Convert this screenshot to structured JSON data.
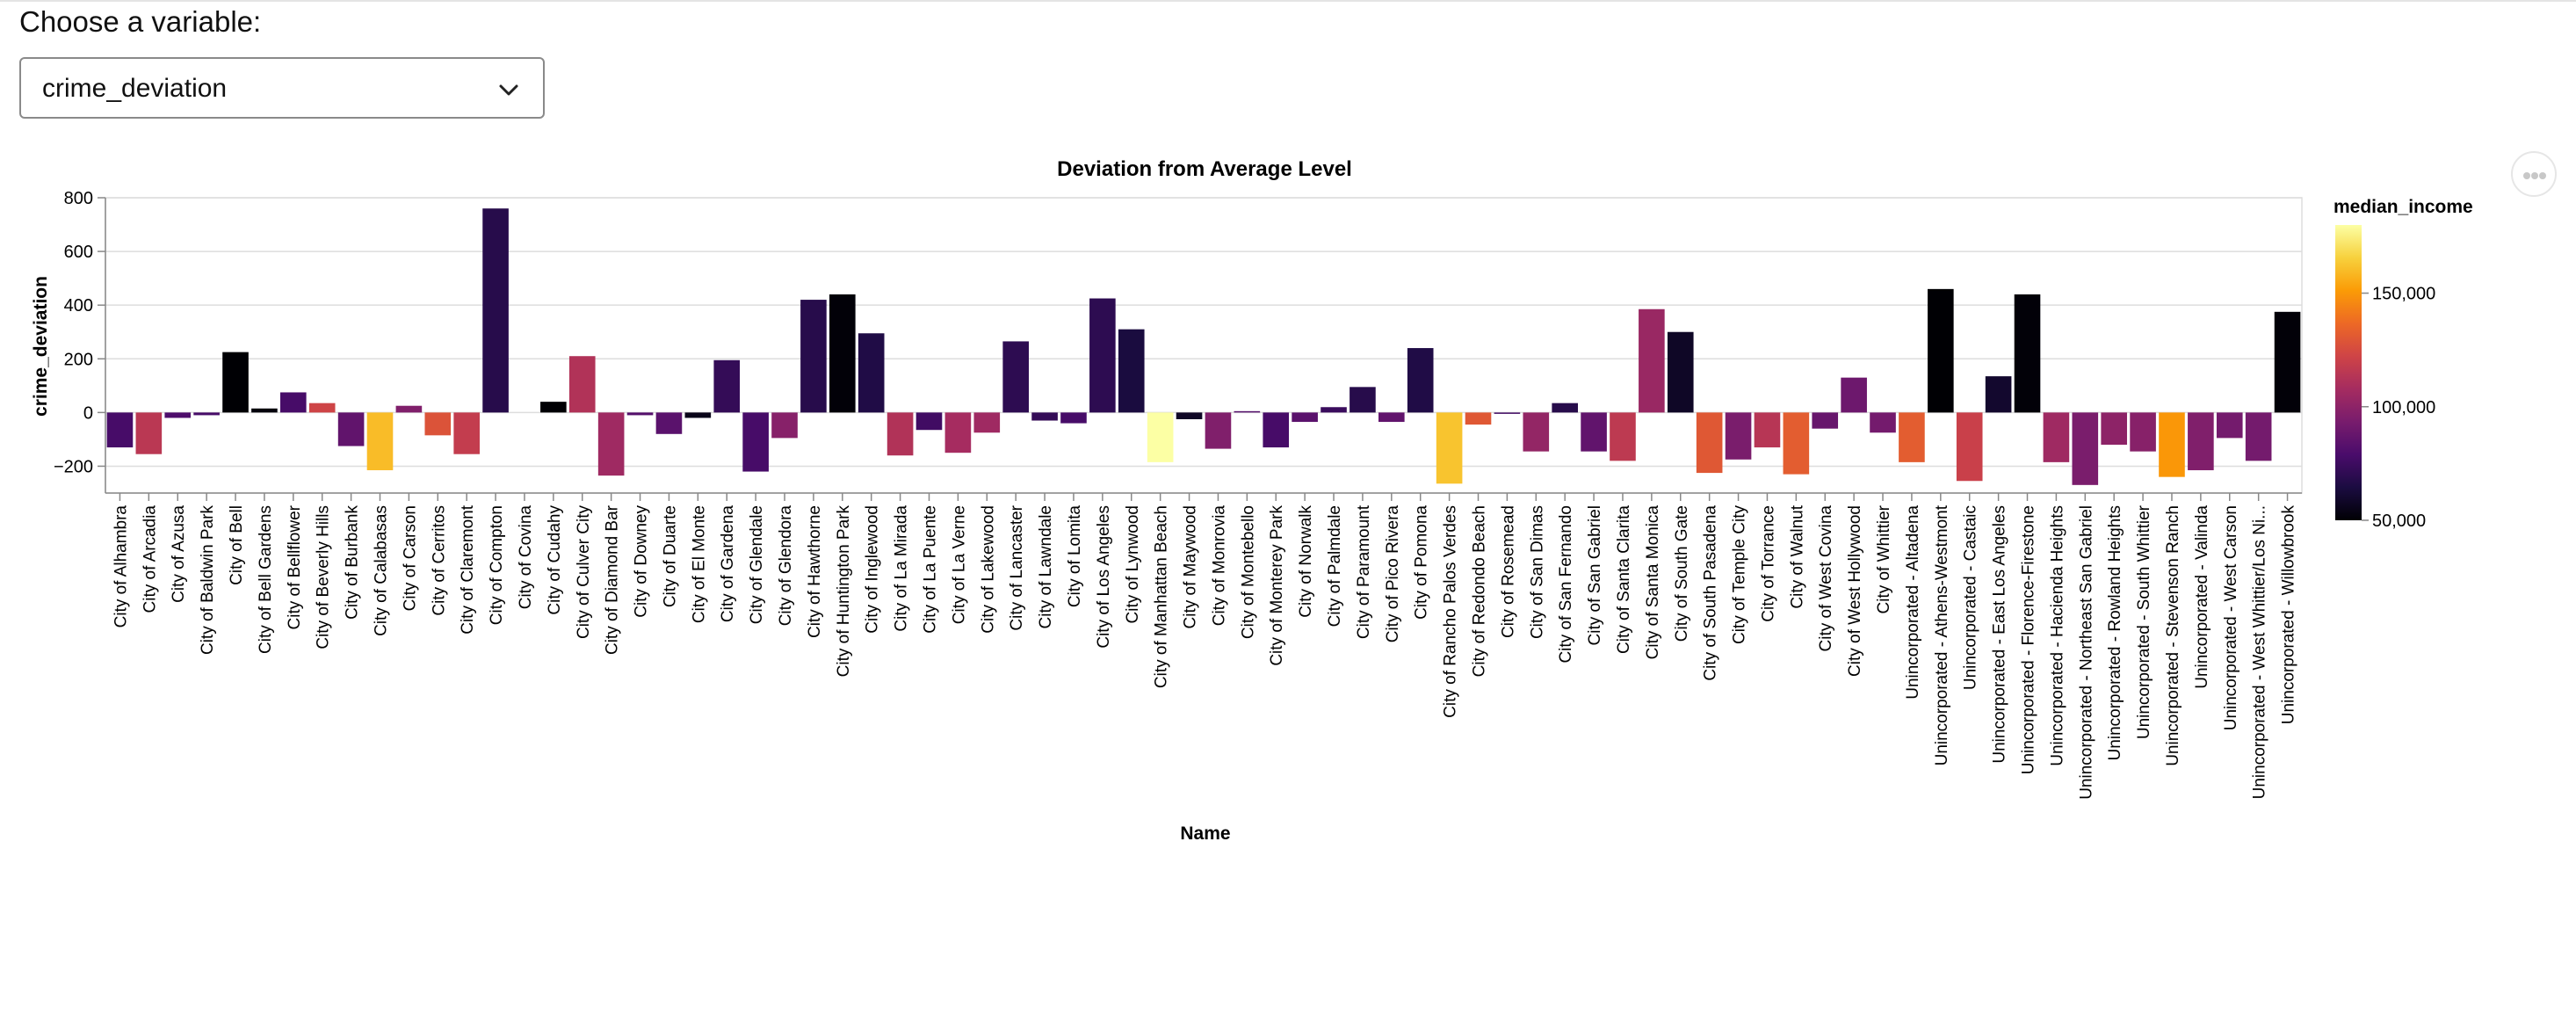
{
  "control": {
    "label": "Choose a variable:",
    "selected": "crime_deviation",
    "icon": "chevron-down-icon"
  },
  "menu": {
    "icon": "more-horizontal-icon"
  },
  "chart_data": {
    "type": "bar",
    "title": "Deviation from Average Level",
    "xlabel": "Name",
    "ylabel": "crime_deviation",
    "ylim": [
      -300,
      800
    ],
    "yticks": [
      800,
      600,
      400,
      200,
      0,
      -200
    ],
    "ytick_labels": [
      "800",
      "600",
      "400",
      "200",
      "0",
      "−200"
    ],
    "grid": true,
    "color_legend": {
      "title": "median_income",
      "min": 50000,
      "max": 180000,
      "ticks": [
        150000,
        100000,
        50000
      ],
      "tick_labels": [
        "150,000",
        "100,000",
        "50,000"
      ],
      "scheme": "inferno",
      "placement": "right"
    },
    "categories": [
      "City of Alhambra",
      "City of Arcadia",
      "City of Azusa",
      "City of Baldwin Park",
      "City of Bell",
      "City of Bell Gardens",
      "City of Bellflower",
      "City of Beverly Hills",
      "City of Burbank",
      "City of Calabasas",
      "City of Carson",
      "City of Cerritos",
      "City of Claremont",
      "City of Compton",
      "City of Covina",
      "City of Cudahy",
      "City of Culver City",
      "City of Diamond Bar",
      "City of Downey",
      "City of Duarte",
      "City of El Monte",
      "City of Gardena",
      "City of Glendale",
      "City of Glendora",
      "City of Hawthorne",
      "City of Huntington Park",
      "City of Inglewood",
      "City of La Mirada",
      "City of La Puente",
      "City of La Verne",
      "City of Lakewood",
      "City of Lancaster",
      "City of Lawndale",
      "City of Lomita",
      "City of Los Angeles",
      "City of Lynwood",
      "City of Manhattan Beach",
      "City of Maywood",
      "City of Monrovia",
      "City of Montebello",
      "City of Monterey Park",
      "City of Norwalk",
      "City of Palmdale",
      "City of Paramount",
      "City of Pico Rivera",
      "City of Pomona",
      "City of Rancho Palos Verdes",
      "City of Redondo Beach",
      "City of Rosemead",
      "City of San Dimas",
      "City of San Fernando",
      "City of San Gabriel",
      "City of Santa Clarita",
      "City of Santa Monica",
      "City of South Gate",
      "City of South Pasadena",
      "City of Temple City",
      "City of Torrance",
      "City of Walnut",
      "City of West Covina",
      "City of West Hollywood",
      "City of Whittier",
      "Unincorporated - Altadena",
      "Unincorporated - Athens-Westmont",
      "Unincorporated - Castaic",
      "Unincorporated - East Los Angeles",
      "Unincorporated - Florence-Firestone",
      "Unincorporated - Hacienda Heights",
      "Unincorporated - Northeast San Gabriel",
      "Unincorporated - Rowland Heights",
      "Unincorporated - South Whittier",
      "Unincorporated - Stevenson Ranch",
      "Unincorporated - Valinda",
      "Unincorporated - West Carson",
      "Unincorporated - West Whittier/Los Ni...",
      "Unincorporated - Willowbrook"
    ],
    "values": [
      -130,
      -155,
      -20,
      -10,
      225,
      15,
      75,
      35,
      -125,
      -215,
      25,
      -85,
      -155,
      760,
      0,
      40,
      210,
      -235,
      -10,
      -80,
      -20,
      195,
      -220,
      -95,
      420,
      440,
      295,
      -160,
      -65,
      -150,
      -75,
      265,
      -30,
      -40,
      425,
      310,
      -185,
      -25,
      -135,
      5,
      -130,
      -35,
      20,
      95,
      -35,
      240,
      -265,
      -45,
      -5,
      -145,
      35,
      -145,
      -180,
      385,
      300,
      -225,
      -175,
      -130,
      -230,
      -60,
      130,
      -75,
      -185,
      460,
      -255,
      135,
      440,
      -185,
      -270,
      -120,
      -145,
      -240,
      -215,
      -95,
      -180,
      375
    ],
    "median_income": [
      78000,
      115000,
      80000,
      78000,
      50000,
      52000,
      78000,
      122000,
      86000,
      160000,
      96000,
      128000,
      118000,
      68000,
      0,
      50000,
      112000,
      106000,
      82000,
      84000,
      55000,
      72000,
      78000,
      98000,
      68000,
      51000,
      66000,
      112000,
      76000,
      108000,
      106000,
      70000,
      72000,
      78000,
      70000,
      64000,
      180000,
      58000,
      96000,
      82000,
      78000,
      84000,
      74000,
      68000,
      86000,
      66000,
      162000,
      130000,
      76000,
      102000,
      68000,
      86000,
      116000,
      104000,
      58000,
      130000,
      94000,
      114000,
      132000,
      88000,
      90000,
      92000,
      132000,
      50000,
      120000,
      60000,
      51000,
      106000,
      94000,
      100000,
      98000,
      150000,
      96000,
      92000,
      92000,
      51000
    ]
  }
}
